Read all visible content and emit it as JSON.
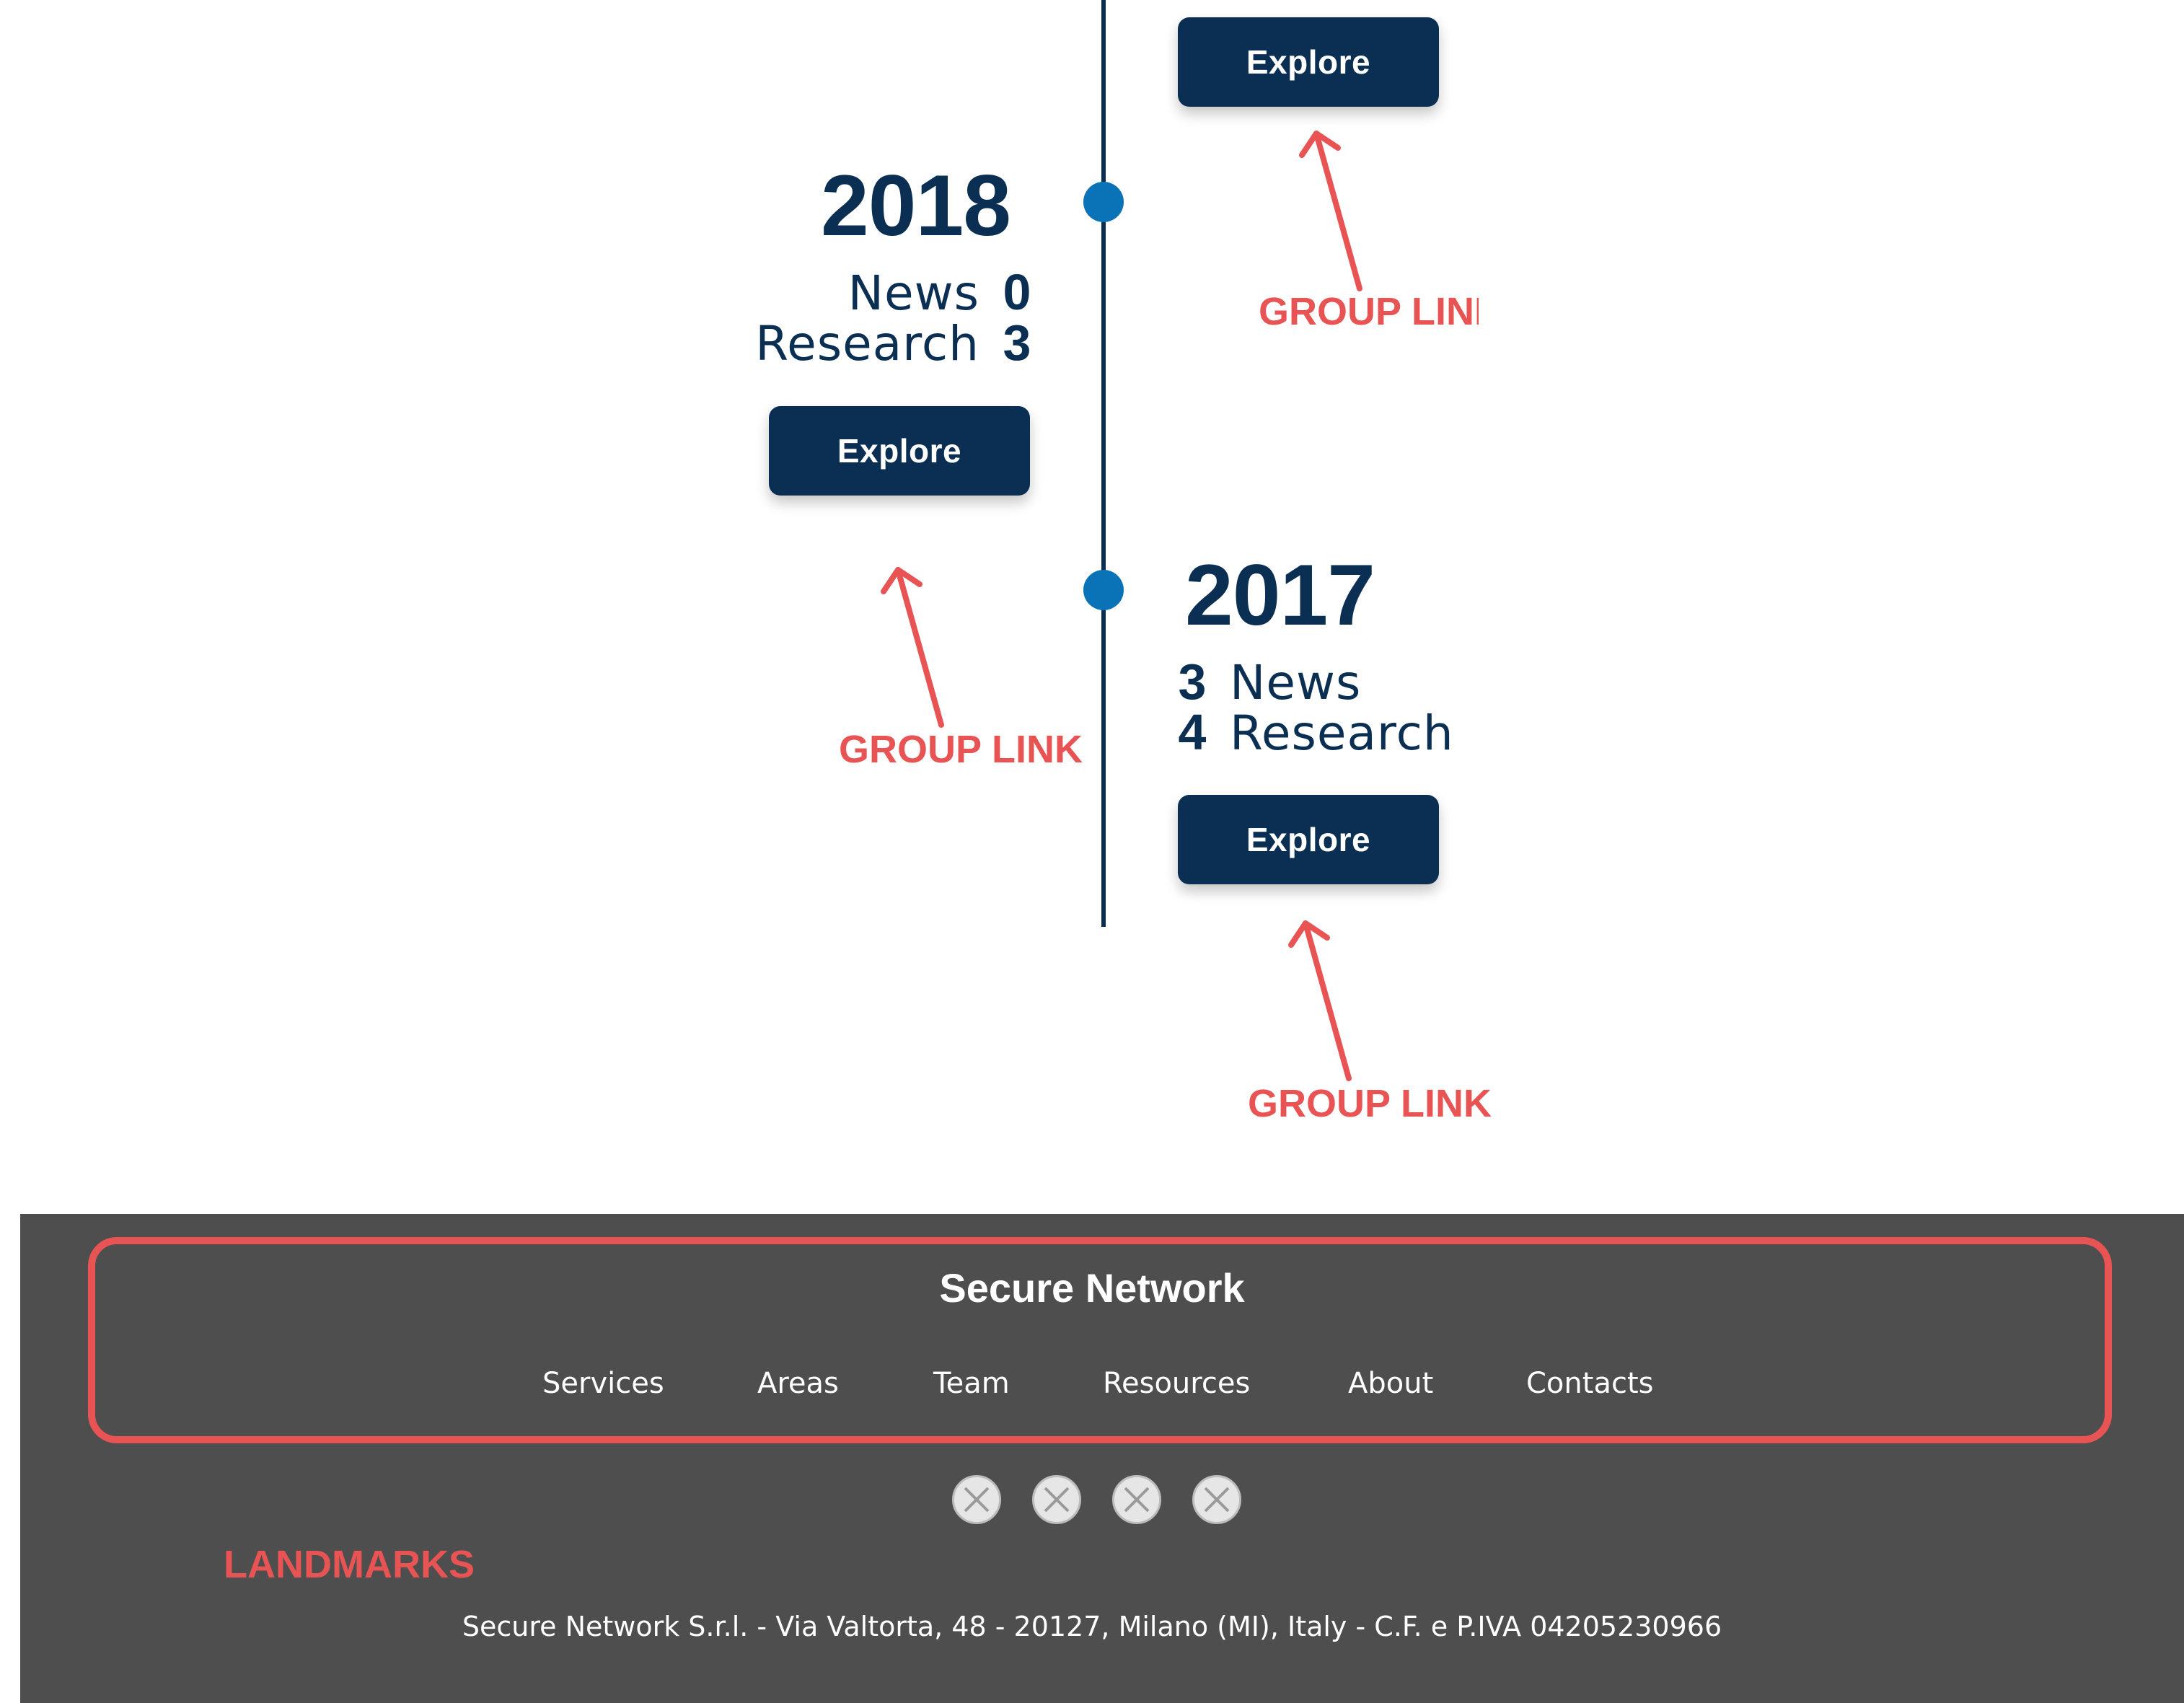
{
  "timeline": {
    "top_item": {
      "explore_label": "Explore"
    },
    "entries": [
      {
        "year": "2018",
        "news_label": "News",
        "news_count": "0",
        "research_label": "Research",
        "research_count": "3",
        "explore_label": "Explore"
      },
      {
        "year": "2017",
        "news_label": "News",
        "news_count": "3",
        "research_label": "Research",
        "research_count": "4",
        "explore_label": "Explore"
      }
    ]
  },
  "annotations": {
    "group_link_top": "GROUP LINK",
    "group_link_2018": "GROUP LINK",
    "group_link_2017": "GROUP LINK",
    "landmarks": "LANDMARKS"
  },
  "footer": {
    "brand": "Secure Network",
    "nav": [
      "Services",
      "Areas",
      "Team",
      "Resources",
      "About",
      "Contacts"
    ],
    "social_icons": [
      "placeholder-icon",
      "placeholder-icon",
      "placeholder-icon",
      "placeholder-icon"
    ],
    "address": "Secure Network S.r.l. - Via Valtorta, 48 - 20127, Milano (MI), Italy - C.F. e P.IVA 04205230966"
  },
  "colors": {
    "navy": "#0a2f52",
    "dot_blue": "#0a73b8",
    "annotation_red": "#e85454",
    "footer_bg": "#4e4e4e"
  }
}
